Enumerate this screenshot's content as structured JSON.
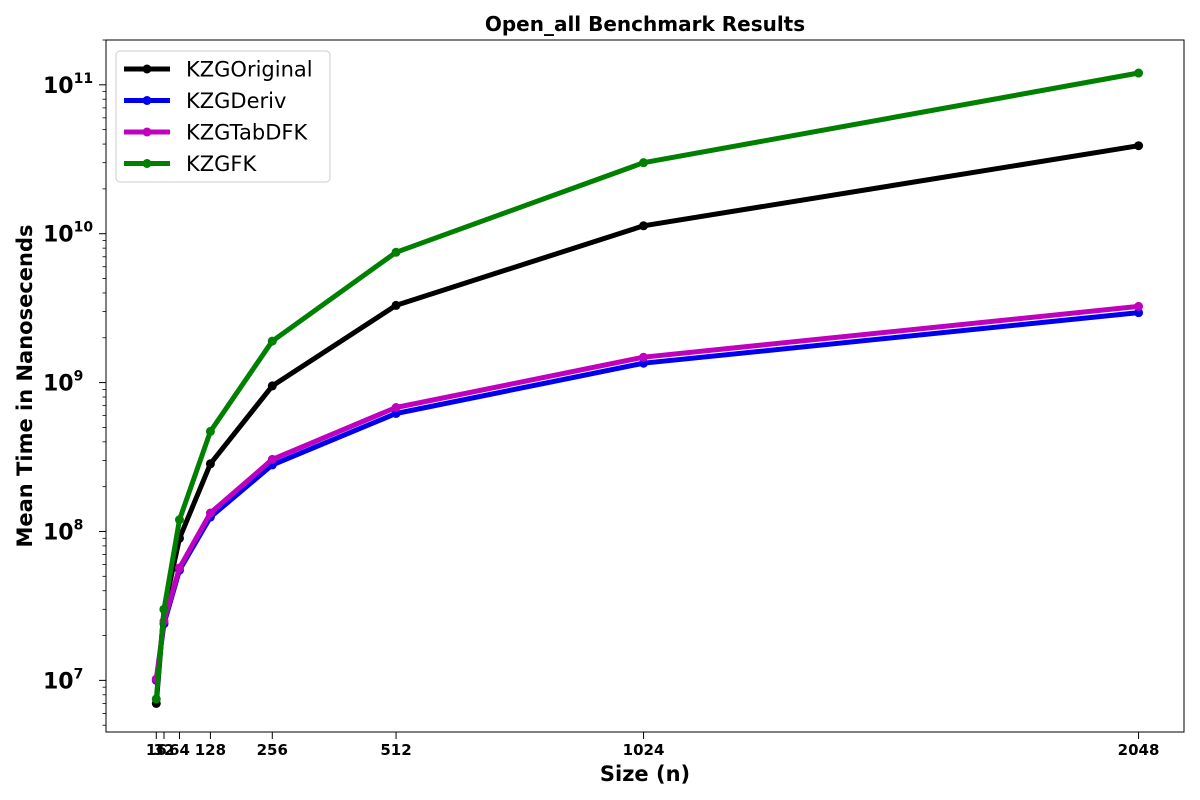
{
  "chart_data": {
    "type": "line",
    "title": "Open_all Benchmark Results",
    "xlabel": "Size (n)",
    "ylabel": "Mean Time in Nanosecends",
    "yscale": "log",
    "xlim": [
      -88,
      2142
    ],
    "ylim": [
      4500000,
      200000000000
    ],
    "x": [
      16,
      32,
      64,
      128,
      256,
      512,
      1024,
      2048
    ],
    "xtick_labels": [
      "16",
      "32",
      "64",
      "128",
      "256",
      "512",
      "1024",
      "2048"
    ],
    "ytick_labels": [
      {
        "base": "10",
        "exp": "7",
        "value": 10000000
      },
      {
        "base": "10",
        "exp": "8",
        "value": 100000000
      },
      {
        "base": "10",
        "exp": "9",
        "value": 1000000000
      },
      {
        "base": "10",
        "exp": "10",
        "value": 10000000000
      },
      {
        "base": "10",
        "exp": "11",
        "value": 100000000000
      }
    ],
    "grid": false,
    "legend_position": "top-left",
    "series": [
      {
        "name": "KZGOriginal",
        "color": "#000000",
        "values": [
          7000000,
          30000000,
          90000000,
          285000000,
          950000000,
          3300000000,
          11300000000,
          39000000000
        ]
      },
      {
        "name": "KZGDeriv",
        "color": "#0000ee",
        "values": [
          10000000,
          24000000,
          55000000,
          125000000,
          280000000,
          620000000,
          1350000000,
          2950000000
        ]
      },
      {
        "name": "KZGTabDFK",
        "color": "#bf00bf",
        "values": [
          10200000,
          25000000,
          57000000,
          133000000,
          305000000,
          680000000,
          1480000000,
          3250000000
        ]
      },
      {
        "name": "KZGFK",
        "color": "#008000",
        "values": [
          7500000,
          30000000,
          120000000,
          470000000,
          1900000000,
          7500000000,
          30000000000,
          120000000000
        ]
      }
    ]
  }
}
